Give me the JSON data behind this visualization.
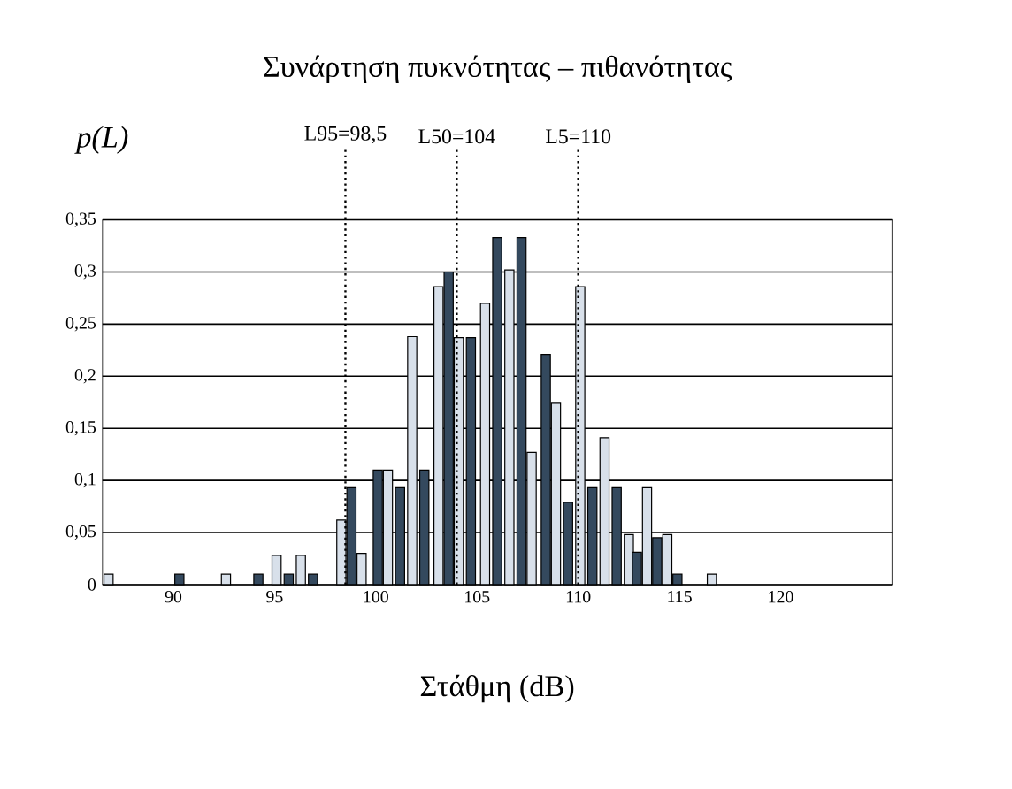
{
  "chart_data": {
    "type": "bar",
    "title": "Συνάρτηση πυκνότητας – πιθανότητας",
    "xlabel": "Στάθμη (dB)",
    "ylabel": "p(L)",
    "x": [
      86.8,
      90.3,
      92.6,
      94.2,
      95.1,
      95.7,
      96.3,
      96.9,
      98.3,
      98.8,
      99.3,
      100.1,
      100.6,
      101.2,
      101.8,
      102.4,
      103.1,
      103.6,
      104.1,
      104.7,
      105.4,
      106.0,
      106.6,
      107.2,
      107.7,
      108.4,
      108.9,
      109.5,
      110.1,
      110.7,
      111.3,
      111.9,
      112.5,
      112.9,
      113.4,
      113.9,
      114.4,
      114.9,
      116.6
    ],
    "values": [
      0.01,
      0.01,
      0.01,
      0.01,
      0.028,
      0.01,
      0.028,
      0.01,
      0.062,
      0.093,
      0.03,
      0.11,
      0.11,
      0.093,
      0.238,
      0.11,
      0.286,
      0.3,
      0.237,
      0.237,
      0.27,
      0.333,
      0.302,
      0.333,
      0.127,
      0.221,
      0.174,
      0.079,
      0.286,
      0.093,
      0.141,
      0.093,
      0.048,
      0.031,
      0.093,
      0.045,
      0.048,
      0.01,
      0.01
    ],
    "colors": [
      "#d8e0ea",
      "#34495e",
      "#d8e0ea",
      "#34495e",
      "#d8e0ea",
      "#34495e",
      "#d8e0ea",
      "#34495e",
      "#d8e0ea",
      "#34495e",
      "#d8e0ea",
      "#34495e",
      "#d8e0ea",
      "#34495e",
      "#d8e0ea",
      "#34495e",
      "#d8e0ea",
      "#34495e",
      "#d8e0ea",
      "#34495e",
      "#d8e0ea",
      "#34495e",
      "#d8e0ea",
      "#34495e",
      "#d8e0ea",
      "#34495e",
      "#d8e0ea",
      "#34495e",
      "#d8e0ea",
      "#34495e",
      "#d8e0ea",
      "#34495e",
      "#d8e0ea",
      "#34495e",
      "#d8e0ea",
      "#34495e",
      "#d8e0ea",
      "#34495e",
      "#d8e0ea"
    ],
    "xlim": [
      86.5,
      125.5
    ],
    "xticks": [
      90,
      95,
      100,
      105,
      110,
      115,
      120
    ],
    "ylim": [
      0,
      0.35
    ],
    "yticks": [
      0,
      {
        "value": 0.05,
        "label": "0,05"
      },
      {
        "value": 0.1,
        "label": "0,1"
      },
      {
        "value": 0.15,
        "label": "0,15"
      },
      {
        "value": 0.2,
        "label": "0,2"
      },
      {
        "value": 0.25,
        "label": "0,25"
      },
      {
        "value": 0.3,
        "label": "0,3"
      },
      {
        "value": 0.35,
        "label": "0,35"
      }
    ],
    "grid": "y",
    "ref_lines": [
      {
        "axis": "x",
        "value": 98.5,
        "label": "L95=98,5",
        "line_style": "dotted"
      },
      {
        "axis": "x",
        "value": 104,
        "label": "L50=104",
        "line_style": "dotted"
      },
      {
        "axis": "x",
        "value": 110,
        "label": "L5=110",
        "line_style": "dotted"
      }
    ]
  }
}
